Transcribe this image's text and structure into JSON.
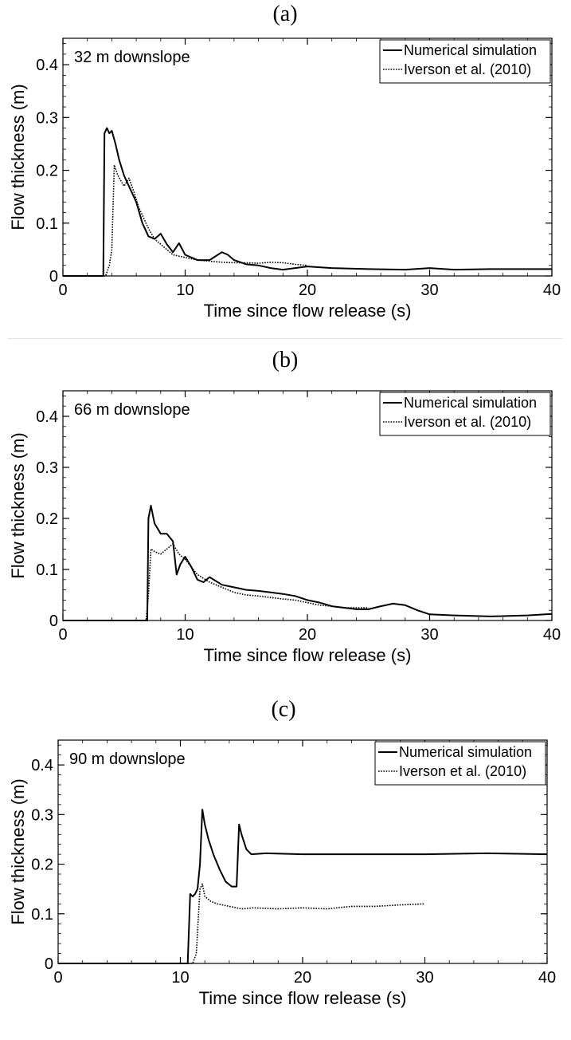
{
  "chart_data": [
    {
      "type": "line",
      "panel_label": "(a)",
      "annotation": "32 m downslope",
      "xlabel": "Time since flow release (s)",
      "ylabel": "Flow thickness (m)",
      "xlim": [
        0,
        40
      ],
      "ylim": [
        0,
        0.45
      ],
      "x_ticks": [
        0,
        10,
        20,
        30,
        40
      ],
      "y_ticks": [
        0,
        0.1,
        0.2,
        0.3,
        0.4
      ],
      "x_tick_labels": [
        "0",
        "10",
        "20",
        "30",
        "40"
      ],
      "y_tick_labels": [
        "0",
        "0.1",
        "0.2",
        "0.3",
        "0.4"
      ],
      "legend_position": "top-right",
      "series": [
        {
          "name": "Numerical simulation",
          "style": "solid",
          "points": [
            [
              0,
              0
            ],
            [
              3.3,
              0
            ],
            [
              3.4,
              0.27
            ],
            [
              3.6,
              0.28
            ],
            [
              3.8,
              0.27
            ],
            [
              4.0,
              0.275
            ],
            [
              4.3,
              0.25
            ],
            [
              4.6,
              0.22
            ],
            [
              5.0,
              0.19
            ],
            [
              5.5,
              0.165
            ],
            [
              6.0,
              0.14
            ],
            [
              6.5,
              0.1
            ],
            [
              7.0,
              0.075
            ],
            [
              7.5,
              0.07
            ],
            [
              8.0,
              0.08
            ],
            [
              8.5,
              0.06
            ],
            [
              9.0,
              0.045
            ],
            [
              9.5,
              0.062
            ],
            [
              10.0,
              0.04
            ],
            [
              11.0,
              0.03
            ],
            [
              12.0,
              0.03
            ],
            [
              13.0,
              0.045
            ],
            [
              13.5,
              0.04
            ],
            [
              14.0,
              0.03
            ],
            [
              15.0,
              0.022
            ],
            [
              16.0,
              0.02
            ],
            [
              17.0,
              0.015
            ],
            [
              18.0,
              0.012
            ],
            [
              19.0,
              0.015
            ],
            [
              20.0,
              0.018
            ],
            [
              22.0,
              0.015
            ],
            [
              25.0,
              0.013
            ],
            [
              28.0,
              0.012
            ],
            [
              30.0,
              0.015
            ],
            [
              32.0,
              0.012
            ],
            [
              35.0,
              0.013
            ],
            [
              40.0,
              0.013
            ]
          ]
        },
        {
          "name": "Iverson et al. (2010)",
          "style": "dotted",
          "points": [
            [
              0,
              0
            ],
            [
              3.5,
              0
            ],
            [
              3.8,
              0.02
            ],
            [
              4.0,
              0.05
            ],
            [
              4.2,
              0.21
            ],
            [
              4.5,
              0.19
            ],
            [
              5.0,
              0.17
            ],
            [
              5.4,
              0.185
            ],
            [
              5.8,
              0.16
            ],
            [
              6.2,
              0.13
            ],
            [
              6.6,
              0.11
            ],
            [
              7.0,
              0.09
            ],
            [
              7.5,
              0.07
            ],
            [
              8.0,
              0.06
            ],
            [
              8.5,
              0.05
            ],
            [
              9.0,
              0.04
            ],
            [
              10.0,
              0.035
            ],
            [
              11.0,
              0.03
            ],
            [
              12.0,
              0.028
            ],
            [
              13.0,
              0.026
            ],
            [
              14.0,
              0.025
            ],
            [
              15.0,
              0.025
            ],
            [
              16.0,
              0.024
            ],
            [
              17.0,
              0.026
            ],
            [
              18.0,
              0.025
            ],
            [
              19.0,
              0.022
            ],
            [
              20.0,
              0.02
            ]
          ]
        }
      ]
    },
    {
      "type": "line",
      "panel_label": "(b)",
      "annotation": "66 m downslope",
      "xlabel": "Time since flow release (s)",
      "ylabel": "Flow thickness (m)",
      "xlim": [
        0,
        40
      ],
      "ylim": [
        0,
        0.45
      ],
      "x_ticks": [
        0,
        10,
        20,
        30,
        40
      ],
      "y_ticks": [
        0,
        0.1,
        0.2,
        0.3,
        0.4
      ],
      "x_tick_labels": [
        "0",
        "10",
        "20",
        "30",
        "40"
      ],
      "y_tick_labels": [
        "0",
        "0.1",
        "0.2",
        "0.3",
        "0.4"
      ],
      "legend_position": "top-right",
      "series": [
        {
          "name": "Numerical simulation",
          "style": "solid",
          "points": [
            [
              0,
              0
            ],
            [
              6.9,
              0
            ],
            [
              7.0,
              0.2
            ],
            [
              7.2,
              0.225
            ],
            [
              7.5,
              0.19
            ],
            [
              8.0,
              0.17
            ],
            [
              8.5,
              0.17
            ],
            [
              9.0,
              0.155
            ],
            [
              9.3,
              0.09
            ],
            [
              9.6,
              0.11
            ],
            [
              10.0,
              0.125
            ],
            [
              10.5,
              0.105
            ],
            [
              11.0,
              0.08
            ],
            [
              11.5,
              0.075
            ],
            [
              12.0,
              0.085
            ],
            [
              13.0,
              0.07
            ],
            [
              14.0,
              0.065
            ],
            [
              15.0,
              0.06
            ],
            [
              16.0,
              0.058
            ],
            [
              17.0,
              0.055
            ],
            [
              18.0,
              0.052
            ],
            [
              19.0,
              0.048
            ],
            [
              20.0,
              0.04
            ],
            [
              21.0,
              0.035
            ],
            [
              22.0,
              0.028
            ],
            [
              23.0,
              0.025
            ],
            [
              24.0,
              0.022
            ],
            [
              25.0,
              0.022
            ],
            [
              26.0,
              0.028
            ],
            [
              27.0,
              0.033
            ],
            [
              28.0,
              0.03
            ],
            [
              29.0,
              0.02
            ],
            [
              30.0,
              0.012
            ],
            [
              32.0,
              0.01
            ],
            [
              35.0,
              0.008
            ],
            [
              38.0,
              0.01
            ],
            [
              40.0,
              0.013
            ]
          ]
        },
        {
          "name": "Iverson et al. (2010)",
          "style": "dotted",
          "points": [
            [
              0,
              0
            ],
            [
              6.8,
              0
            ],
            [
              7.0,
              0.05
            ],
            [
              7.2,
              0.14
            ],
            [
              7.5,
              0.135
            ],
            [
              8.0,
              0.13
            ],
            [
              8.5,
              0.14
            ],
            [
              9.0,
              0.15
            ],
            [
              9.5,
              0.13
            ],
            [
              10.0,
              0.12
            ],
            [
              10.5,
              0.105
            ],
            [
              11.0,
              0.09
            ],
            [
              12.0,
              0.075
            ],
            [
              13.0,
              0.065
            ],
            [
              14.0,
              0.055
            ],
            [
              15.0,
              0.05
            ],
            [
              16.0,
              0.048
            ],
            [
              17.0,
              0.045
            ],
            [
              18.0,
              0.042
            ],
            [
              19.0,
              0.04
            ],
            [
              20.0,
              0.035
            ],
            [
              21.0,
              0.03
            ],
            [
              22.0,
              0.028
            ],
            [
              23.0,
              0.025
            ],
            [
              24.0,
              0.025
            ],
            [
              25.0,
              0.025
            ]
          ]
        }
      ]
    },
    {
      "type": "line",
      "panel_label": "(c)",
      "annotation": "90 m downslope",
      "xlabel": "Time since flow release (s)",
      "ylabel": "Flow thickness (m)",
      "xlim": [
        0,
        40
      ],
      "ylim": [
        0,
        0.45
      ],
      "x_ticks": [
        0,
        10,
        20,
        30,
        40
      ],
      "y_ticks": [
        0,
        0.1,
        0.2,
        0.3,
        0.4
      ],
      "x_tick_labels": [
        "0",
        "10",
        "20",
        "30",
        "40"
      ],
      "y_tick_labels": [
        "0",
        "0.1",
        "0.2",
        "0.3",
        "0.4"
      ],
      "legend_position": "top-right",
      "series": [
        {
          "name": "Numerical simulation",
          "style": "solid",
          "points": [
            [
              0,
              0
            ],
            [
              10.6,
              0
            ],
            [
              10.8,
              0.14
            ],
            [
              11.0,
              0.135
            ],
            [
              11.2,
              0.14
            ],
            [
              11.4,
              0.15
            ],
            [
              11.6,
              0.2
            ],
            [
              11.8,
              0.31
            ],
            [
              12.0,
              0.28
            ],
            [
              12.3,
              0.25
            ],
            [
              12.7,
              0.22
            ],
            [
              13.2,
              0.19
            ],
            [
              13.7,
              0.165
            ],
            [
              14.2,
              0.155
            ],
            [
              14.6,
              0.155
            ],
            [
              14.8,
              0.28
            ],
            [
              15.0,
              0.26
            ],
            [
              15.4,
              0.23
            ],
            [
              15.8,
              0.22
            ],
            [
              17.0,
              0.222
            ],
            [
              20.0,
              0.22
            ],
            [
              25.0,
              0.22
            ],
            [
              30.0,
              0.22
            ],
            [
              35.0,
              0.222
            ],
            [
              40.0,
              0.22
            ]
          ]
        },
        {
          "name": "Iverson et al. (2010)",
          "style": "dotted",
          "points": [
            [
              0,
              0
            ],
            [
              11.0,
              0
            ],
            [
              11.3,
              0.02
            ],
            [
              11.6,
              0.15
            ],
            [
              11.8,
              0.16
            ],
            [
              12.0,
              0.135
            ],
            [
              12.5,
              0.125
            ],
            [
              13.0,
              0.12
            ],
            [
              14.0,
              0.115
            ],
            [
              15.0,
              0.11
            ],
            [
              16.0,
              0.112
            ],
            [
              18.0,
              0.11
            ],
            [
              20.0,
              0.112
            ],
            [
              22.0,
              0.11
            ],
            [
              24.0,
              0.115
            ],
            [
              26.0,
              0.115
            ],
            [
              28.0,
              0.118
            ],
            [
              30.0,
              0.12
            ]
          ]
        }
      ]
    }
  ]
}
